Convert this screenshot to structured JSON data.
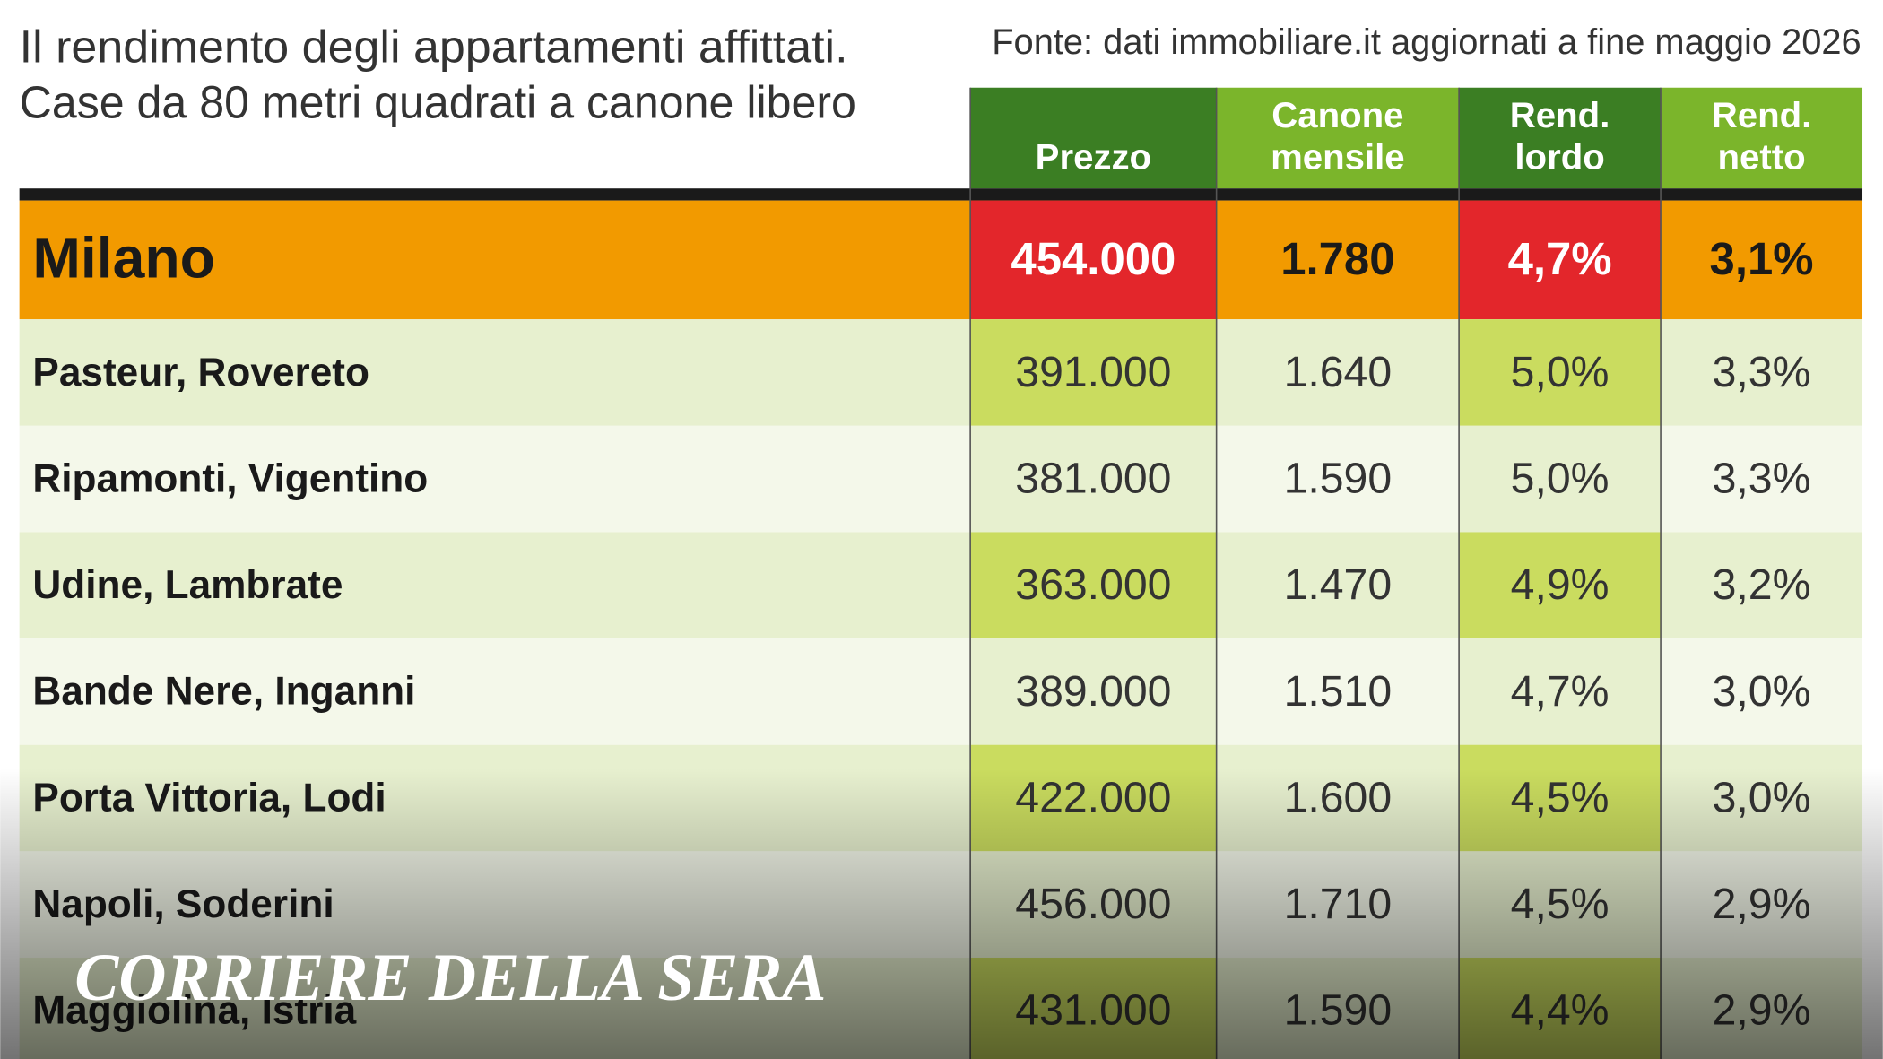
{
  "header": {
    "title_lines": [
      "Il rendimento degli appartamenti affittati.",
      "Case da 80 metri quadrati a canone libero"
    ],
    "source": "Fonte: dati immobiliare.it aggiornati a fine maggio 2026"
  },
  "table": {
    "columns": [
      [
        "Prezzo"
      ],
      [
        "Canone",
        "mensile"
      ],
      [
        "Rend.",
        "lordo"
      ],
      [
        "Rend.",
        "netto"
      ]
    ],
    "rows": [
      [
        "Milano",
        "454.000",
        "1.780",
        "4,7%",
        "3,1%"
      ],
      [
        "Pasteur, Rovereto",
        "391.000",
        "1.640",
        "5,0%",
        "3,3%"
      ],
      [
        "Ripamonti, Vigentino",
        "381.000",
        "1.590",
        "5,0%",
        "3,3%"
      ],
      [
        "Udine, Lambrate",
        "363.000",
        "1.470",
        "4,9%",
        "3,2%"
      ],
      [
        "Bande Nere, Inganni",
        "389.000",
        "1.510",
        "4,7%",
        "3,0%"
      ],
      [
        "Porta Vittoria, Lodi",
        "422.000",
        "1.600",
        "4,5%",
        "3,0%"
      ],
      [
        "Napoli, Soderini",
        "456.000",
        "1.710",
        "4,5%",
        "2,9%"
      ],
      [
        "Maggiolina, Istria",
        "431.000",
        "1.590",
        "4,4%",
        "2,9%"
      ]
    ]
  },
  "watermark": "CORRIERE DELLA SERA"
}
